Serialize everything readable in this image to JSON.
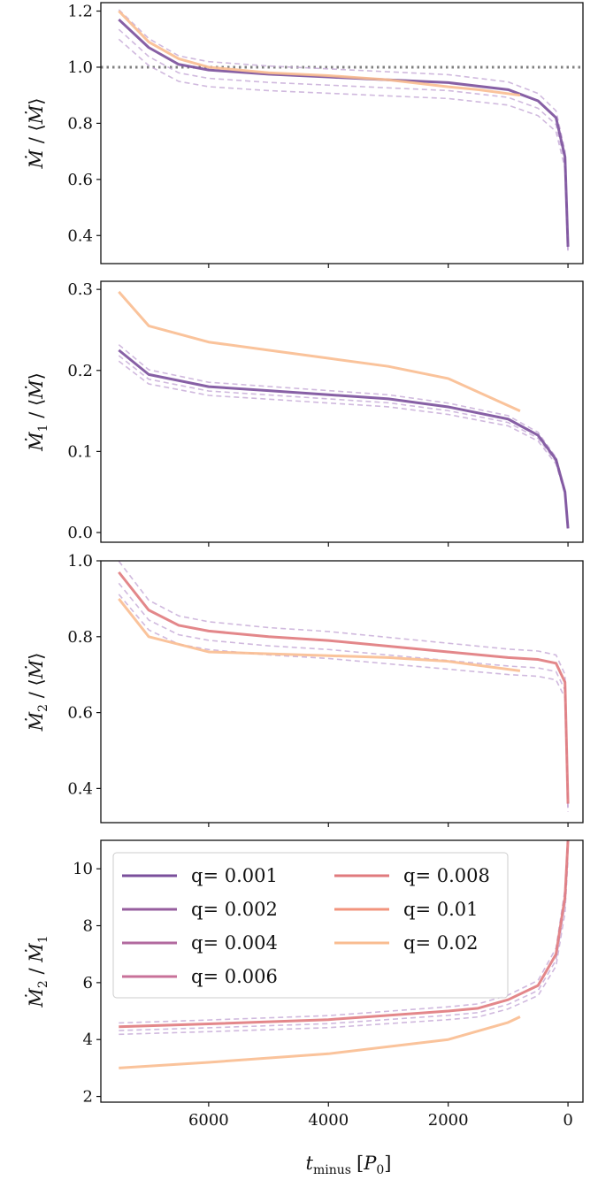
{
  "figure": {
    "xlabel": "t_minus [P_0]",
    "xlabel_main": "t",
    "xlabel_sub": "minus",
    "xlabel_unit_open": "[",
    "xlabel_unit": "P",
    "xlabel_unit_sub": "0",
    "xlabel_unit_close": "]",
    "xticks": [
      "6000",
      "4000",
      "2000",
      "0"
    ],
    "xlim": [
      7800,
      -250
    ]
  },
  "series_legend": [
    {
      "label": "q= 0.001",
      "color": "#7a4f9b"
    },
    {
      "label": "q= 0.002",
      "color": "#965e9e"
    },
    {
      "label": "q= 0.004",
      "color": "#b26a9f"
    },
    {
      "label": "q= 0.006",
      "color": "#c87199"
    },
    {
      "label": "q= 0.008",
      "color": "#e07a7d"
    },
    {
      "label": "q= 0.01",
      "color": "#f2947d"
    },
    {
      "label": "q= 0.02",
      "color": "#f9bc90"
    }
  ],
  "chart_data": [
    {
      "type": "line",
      "panel": 1,
      "ylabel": "Ṁ / ⟨Ṁ⟩",
      "ylim": [
        0.3,
        1.23
      ],
      "yticks": [
        "0.4",
        "0.6",
        "0.8",
        "1.0",
        "1.2"
      ],
      "reference_line": {
        "y": 1.0,
        "style": "dotted",
        "color": "#808080"
      },
      "series": [
        {
          "name": "q= 0.001",
          "x": [
            7500,
            7000,
            6500,
            6000,
            5000,
            4000,
            3000,
            2000,
            1000,
            500,
            200,
            50,
            0
          ],
          "y": [
            1.17,
            1.07,
            1.01,
            0.99,
            0.975,
            0.965,
            0.955,
            0.945,
            0.92,
            0.88,
            0.82,
            0.68,
            0.36
          ]
        },
        {
          "name": "q= 0.02",
          "x": [
            7500,
            7000,
            6500,
            6000,
            5000,
            4000,
            3000,
            2000,
            1500,
            800
          ],
          "y": [
            1.2,
            1.09,
            1.03,
            1.0,
            0.98,
            0.97,
            0.955,
            0.93,
            0.92,
            0.9
          ]
        }
      ]
    },
    {
      "type": "line",
      "panel": 2,
      "ylabel": "Ṁ1 / ⟨Ṁ⟩",
      "ylim": [
        -0.012,
        0.31
      ],
      "yticks": [
        "0.0",
        "0.1",
        "0.2",
        "0.3"
      ],
      "series": [
        {
          "name": "q= 0.001",
          "x": [
            7500,
            7000,
            6000,
            5000,
            4000,
            3000,
            2000,
            1000,
            500,
            200,
            50,
            0
          ],
          "y": [
            0.225,
            0.195,
            0.18,
            0.175,
            0.17,
            0.165,
            0.155,
            0.14,
            0.12,
            0.09,
            0.05,
            0.005
          ]
        },
        {
          "name": "q= 0.02",
          "x": [
            7500,
            7000,
            6000,
            5000,
            4000,
            3000,
            2000,
            800
          ],
          "y": [
            0.297,
            0.255,
            0.235,
            0.225,
            0.215,
            0.205,
            0.19,
            0.15
          ]
        }
      ]
    },
    {
      "type": "line",
      "panel": 3,
      "ylabel": "Ṁ2 / ⟨Ṁ⟩",
      "ylim": [
        0.31,
        1.0
      ],
      "yticks": [
        "0.4",
        "0.6",
        "0.8",
        "1.0"
      ],
      "series": [
        {
          "name": "q= 0.008",
          "x": [
            7500,
            7000,
            6500,
            6000,
            5000,
            4000,
            3000,
            2000,
            1000,
            500,
            200,
            50,
            0
          ],
          "y": [
            0.97,
            0.87,
            0.83,
            0.815,
            0.8,
            0.79,
            0.775,
            0.76,
            0.745,
            0.74,
            0.73,
            0.68,
            0.36
          ]
        },
        {
          "name": "q= 0.02",
          "x": [
            7500,
            7000,
            6000,
            5000,
            4000,
            3000,
            2000,
            800
          ],
          "y": [
            0.9,
            0.8,
            0.76,
            0.755,
            0.75,
            0.745,
            0.735,
            0.71
          ]
        }
      ]
    },
    {
      "type": "line",
      "panel": 4,
      "ylabel": "Ṁ2 / Ṁ1",
      "ylim": [
        1.8,
        11
      ],
      "yticks": [
        "2",
        "4",
        "6",
        "8",
        "10"
      ],
      "series": [
        {
          "name": "q= 0.008",
          "x": [
            7500,
            6000,
            4000,
            2000,
            1500,
            1000,
            500,
            200,
            50,
            0
          ],
          "y": [
            4.45,
            4.55,
            4.7,
            5.0,
            5.1,
            5.4,
            5.9,
            7.0,
            9.0,
            11
          ]
        },
        {
          "name": "q= 0.02",
          "x": [
            7500,
            6000,
            4000,
            2000,
            1500,
            1000,
            800
          ],
          "y": [
            3.0,
            3.2,
            3.5,
            4.0,
            4.3,
            4.6,
            4.8
          ]
        }
      ]
    }
  ]
}
